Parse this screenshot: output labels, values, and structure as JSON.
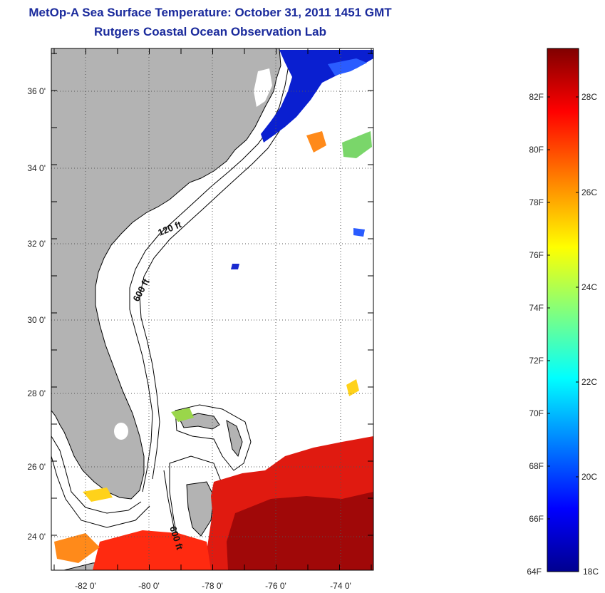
{
  "title": "MetOp-A Sea Surface Temperature:  October 31, 2011 1451 GMT",
  "subtitle": "Rutgers Coastal Ocean Observation Lab",
  "map": {
    "lat_labels": [
      "36 0'",
      "34 0'",
      "32 0'",
      "30 0'",
      "28 0'",
      "26 0'",
      "24 0'"
    ],
    "lon_labels": [
      "-82 0'",
      "-80 0'",
      "-78 0'",
      "-76 0'",
      "-74 0'"
    ],
    "contour_labels": [
      "120 ft",
      "600 ft",
      "600 ft"
    ],
    "colors": {
      "land": "#b3b3b3",
      "grid": "#555555"
    }
  },
  "colorbar": {
    "f_labels": [
      "82F",
      "80F",
      "78F",
      "76F",
      "74F",
      "72F",
      "70F",
      "68F",
      "66F",
      "64F"
    ],
    "c_labels": [
      "28C",
      "26C",
      "24C",
      "22C",
      "20C",
      "18C"
    ],
    "colors": [
      "#00008f",
      "#0000ff",
      "#00ffff",
      "#ffff00",
      "#ff8000",
      "#ff0000",
      "#800000"
    ]
  }
}
